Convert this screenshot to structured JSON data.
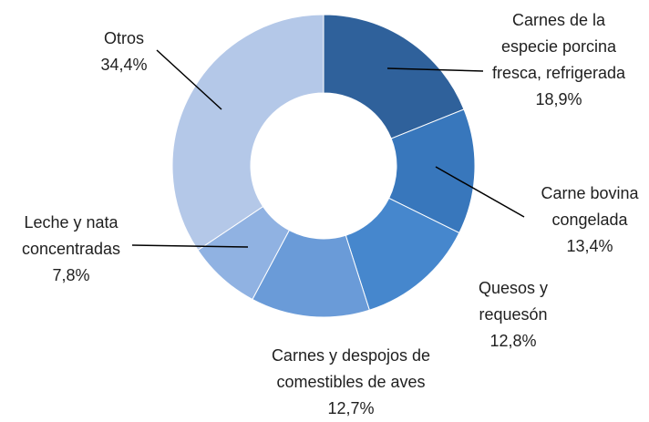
{
  "chart_data": {
    "type": "donut",
    "categories": [
      "Carnes de la especie porcina fresca, refrigerada",
      "Carne bovina congelada",
      "Quesos y requesón",
      "Carnes y despojos de comestibles de aves",
      "Leche y nata concentradas",
      "Otros"
    ],
    "values": [
      18.9,
      13.4,
      12.8,
      12.7,
      7.8,
      34.4
    ],
    "value_labels": [
      "18,9%",
      "13,4%",
      "12,8%",
      "12,7%",
      "7,8%",
      "34,4%"
    ],
    "colors": [
      "#2f619b",
      "#3877bc",
      "#4687cd",
      "#6a9bd8",
      "#90b2e2",
      "#b4c8e8"
    ]
  }
}
